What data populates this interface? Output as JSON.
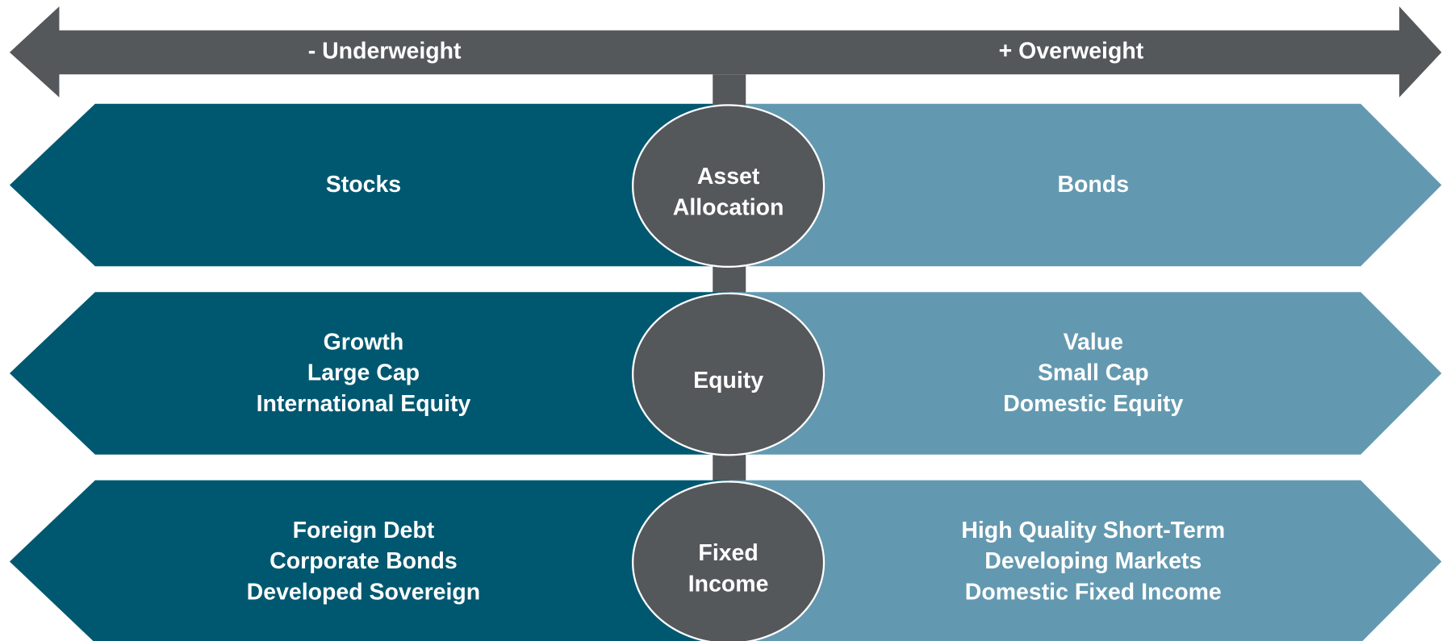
{
  "axis": {
    "left_label": "- Underweight",
    "right_label": "+ Overweight"
  },
  "rows": [
    {
      "center": [
        "Asset",
        "Allocation"
      ],
      "left": [
        "Stocks"
      ],
      "right": [
        "Bonds"
      ]
    },
    {
      "center": [
        "Equity"
      ],
      "left": [
        "Growth",
        "Large Cap",
        "International Equity"
      ],
      "right": [
        "Value",
        "Small Cap",
        "Domestic Equity"
      ]
    },
    {
      "center": [
        "Fixed",
        "Income"
      ],
      "left": [
        "Foreign Debt",
        "Corporate Bonds",
        "Developed Sovereign"
      ],
      "right": [
        "High Quality Short-Term",
        "Developing Markets",
        "Domestic Fixed Income"
      ]
    }
  ]
}
